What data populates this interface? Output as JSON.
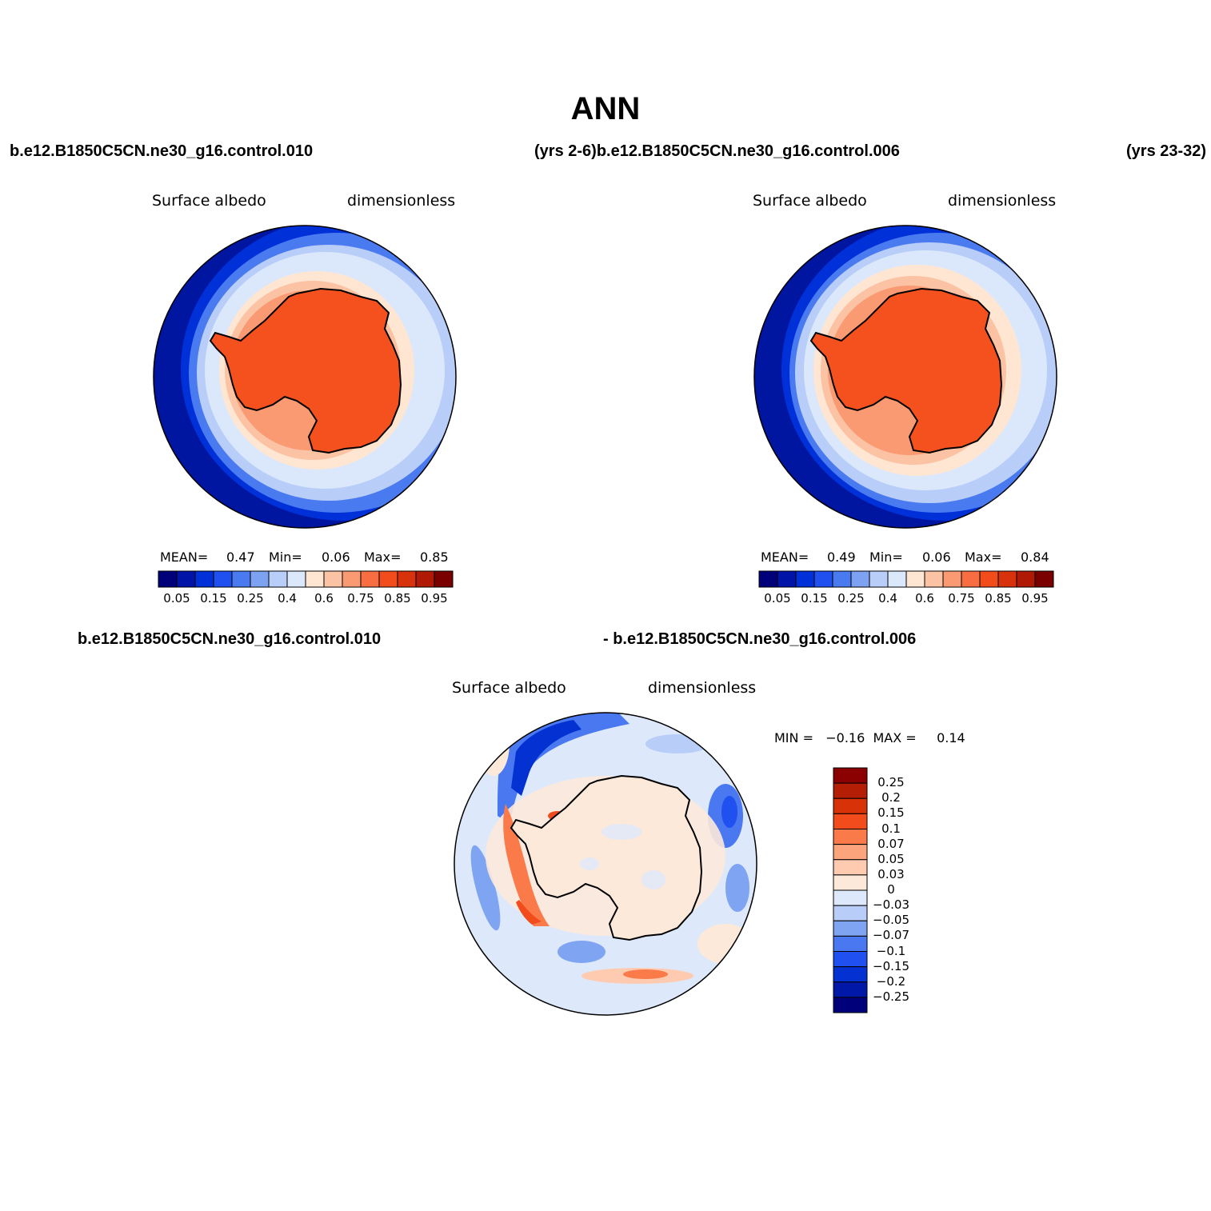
{
  "title": "ANN",
  "header": {
    "left_case": "b.e12.B1850C5CN.ne30_g16.control.010",
    "mid_case": "(yrs 2-6)b.e12.B1850C5CN.ne30_g16.control.006",
    "right_years": "(yrs 23-32)"
  },
  "panels": [
    {
      "field": "Surface albedo",
      "units": "dimensionless",
      "mean_label": "MEAN=",
      "mean_value": "0.47",
      "min_label": "Min=",
      "min_value": "0.06",
      "max_label": "Max=",
      "max_value": "0.85"
    },
    {
      "field": "Surface albedo",
      "units": "dimensionless",
      "mean_label": "MEAN=",
      "mean_value": "0.49",
      "min_label": "Min=",
      "min_value": "0.06",
      "max_label": "Max=",
      "max_value": "0.84"
    }
  ],
  "diff": {
    "case_a": "b.e12.B1850C5CN.ne30_g16.control.010",
    "case_b": "- b.e12.B1850C5CN.ne30_g16.control.006",
    "field": "Surface albedo",
    "units": "dimensionless",
    "minmax": "MIN =   −0.16  MAX =     0.14"
  },
  "colorbar_levels": [
    "0.05",
    "0.15",
    "0.25",
    "0.4",
    "0.6",
    "0.75",
    "0.85",
    "0.95"
  ],
  "colorbar_colors": [
    "#00007a",
    "#0014a8",
    "#0030d8",
    "#2050f0",
    "#4a7af0",
    "#7da2f2",
    "#b8cdf7",
    "#dbe8fb",
    "#fee6d2",
    "#fcc2a4",
    "#fa9a72",
    "#f86e42",
    "#f24c1c",
    "#d8320c",
    "#b01a04",
    "#7a0000"
  ],
  "diff_levels": [
    "0.25",
    "0.2",
    "0.15",
    "0.1",
    "0.07",
    "0.05",
    "0.03",
    "0",
    "−0.03",
    "−0.05",
    "−0.07",
    "−0.1",
    "−0.15",
    "−0.2",
    "−0.25"
  ],
  "diff_colors": [
    "#8b0000",
    "#b41e04",
    "#d83208",
    "#f24c1c",
    "#fa7a4a",
    "#fca47c",
    "#fecbb0",
    "#fde9da",
    "#dde9fb",
    "#b8cdf7",
    "#7fa4f2",
    "#4a78f0",
    "#2050f0",
    "#0432d2",
    "#0018a8",
    "#00007a"
  ]
}
